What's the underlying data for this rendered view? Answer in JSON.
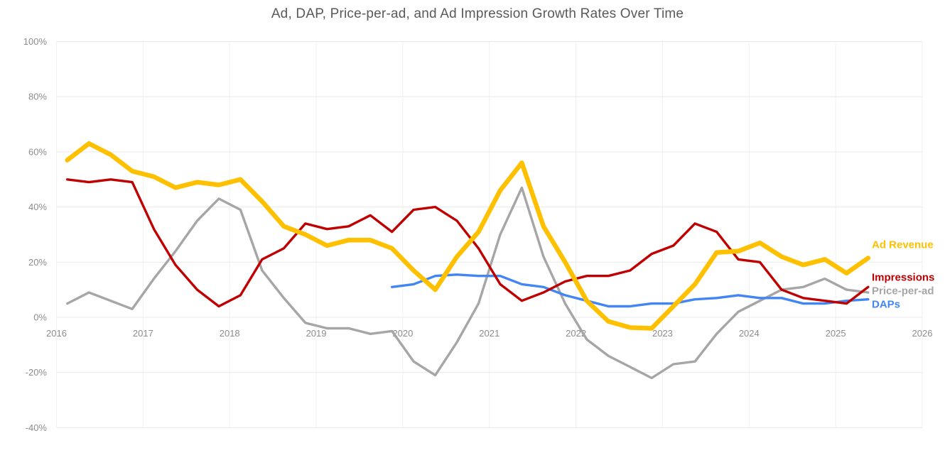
{
  "page": {
    "background_color": "#ffffff"
  },
  "chart_data": {
    "type": "line",
    "title": "Ad, DAP, Price-per-ad, and Ad Impression Growth Rates Over Time",
    "x_axis": {
      "label": "",
      "tick_values": [
        2016,
        2017,
        2018,
        2019,
        2020,
        2021,
        2022,
        2023,
        2024,
        2025,
        2026
      ],
      "tick_labels": [
        "2016",
        "2017",
        "2018",
        "2019",
        "2020",
        "2021",
        "2022",
        "2023",
        "2024",
        "2025",
        "2026"
      ],
      "range": [
        2016,
        2026
      ]
    },
    "y_axis": {
      "label": "",
      "unit": "percent",
      "tick_values": [
        100,
        80,
        60,
        40,
        20,
        0,
        -20,
        -40
      ],
      "tick_labels": [
        "100%",
        "80%",
        "60%",
        "40%",
        "20%",
        "0%",
        "-20%",
        "-40%"
      ],
      "range_pct": [
        -40,
        100
      ]
    },
    "grid": {
      "horizontal": true,
      "vertical": true
    },
    "legend": {
      "position": "right-of-line-ends",
      "entries": [
        "Ad Revenue",
        "Impressions",
        "Price-per-ad",
        "DAPs"
      ]
    },
    "quarters": [
      "Q1 2016",
      "Q2 2016",
      "Q3 2016",
      "Q4 2016",
      "Q1 2017",
      "Q2 2017",
      "Q3 2017",
      "Q4 2017",
      "Q1 2018",
      "Q2 2018",
      "Q3 2018",
      "Q4 2018",
      "Q1 2019",
      "Q2 2019",
      "Q3 2019",
      "Q4 2019",
      "Q1 2020",
      "Q2 2020",
      "Q3 2020",
      "Q4 2020",
      "Q1 2021",
      "Q2 2021",
      "Q3 2021",
      "Q4 2021",
      "Q1 2022",
      "Q2 2022",
      "Q3 2022",
      "Q4 2022",
      "Q1 2023",
      "Q2 2023",
      "Q3 2023",
      "Q4 2023",
      "Q1 2024",
      "Q2 2024",
      "Q3 2024",
      "Q4 2024",
      "Q1 2025",
      "Q2 2025"
    ],
    "series": [
      {
        "name": "Ad Revenue",
        "color": "#FFC000",
        "start_quarter": "Q1 2016",
        "start_index": 0,
        "values_pct": [
          57,
          63,
          59,
          53,
          51,
          47,
          49,
          48,
          50,
          42,
          33,
          30,
          26,
          28,
          28,
          25,
          17,
          10,
          22,
          31,
          46,
          56,
          33,
          20,
          6,
          -1.5,
          -3.7,
          -4,
          4,
          12,
          23.5,
          24,
          27,
          22,
          19,
          21,
          16,
          21.5
        ]
      },
      {
        "name": "Impressions",
        "color": "#C00000",
        "start_quarter": "Q1 2016",
        "start_index": 0,
        "values_pct": [
          50,
          49,
          50,
          49,
          32,
          19,
          10,
          4,
          8,
          21,
          25,
          34,
          32,
          33,
          37,
          31,
          39,
          40,
          35,
          25,
          12,
          6,
          9,
          13,
          15,
          15,
          17,
          23,
          26,
          34,
          31,
          21,
          20,
          10,
          7,
          6,
          5,
          11
        ]
      },
      {
        "name": "Price-per-ad",
        "color": "#A6A6A6",
        "start_quarter": "Q1 2016",
        "start_index": 0,
        "values_pct": [
          5,
          9,
          6,
          3,
          14,
          24,
          35,
          43,
          39,
          17,
          7,
          -2,
          -4,
          -4,
          -6,
          -5,
          -16,
          -21,
          -9,
          5,
          30,
          47,
          22,
          5,
          -8,
          -14,
          -18,
          -22,
          -17,
          -16,
          -6,
          2,
          6,
          10,
          11,
          14,
          10,
          9
        ]
      },
      {
        "name": "DAPs",
        "color": "#4285F4",
        "start_quarter": "Q4 2019",
        "start_index": 15,
        "values_pct": [
          11,
          12,
          15,
          15.5,
          15,
          15,
          12,
          11,
          8,
          6,
          4,
          4,
          5,
          5,
          6.5,
          7,
          8,
          7,
          7,
          5,
          5,
          6,
          6.5
        ]
      }
    ]
  }
}
